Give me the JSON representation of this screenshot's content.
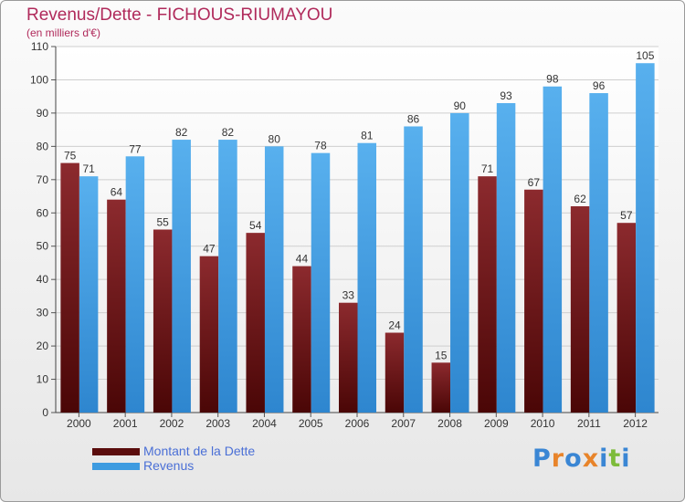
{
  "header": {
    "title": "Revenus/Dette - FICHOUS-RIUMAYOU",
    "subtitle": "(en milliers d'€)"
  },
  "chart_data": {
    "type": "bar",
    "title": "Revenus/Dette - FICHOUS-RIUMAYOU",
    "ylabel": "(en milliers d'€)",
    "xlabel": "",
    "categories": [
      "2000",
      "2001",
      "2002",
      "2003",
      "2004",
      "2005",
      "2006",
      "2007",
      "2008",
      "2009",
      "2010",
      "2011",
      "2012"
    ],
    "series": [
      {
        "name": "Montant de la Dette",
        "color": "#7a1c1c",
        "values": [
          75,
          64,
          55,
          47,
          54,
          44,
          33,
          24,
          15,
          71,
          67,
          62,
          57
        ]
      },
      {
        "name": "Revenus",
        "color": "#3d9be0",
        "values": [
          71,
          77,
          82,
          82,
          80,
          78,
          81,
          86,
          90,
          93,
          98,
          96,
          105
        ]
      }
    ],
    "ylim": [
      0,
      110
    ],
    "yticks": [
      0,
      10,
      20,
      30,
      40,
      50,
      60,
      70,
      80,
      90,
      100,
      110
    ],
    "grid": true,
    "legend": "bottom-left"
  },
  "legend": {
    "items": [
      {
        "label": "Montant de la Dette",
        "color": "#5a0c0c"
      },
      {
        "label": "Revenus",
        "color": "#3d9be0"
      }
    ]
  },
  "logo": {
    "letters": [
      "P",
      "r",
      "o",
      "x",
      "i",
      "t",
      "i"
    ],
    "colors": [
      "#3a86d4",
      "#e8842a",
      "#3a86d4",
      "#e8842a",
      "#3a86d4",
      "#7dbb3a",
      "#3a86d4"
    ]
  }
}
